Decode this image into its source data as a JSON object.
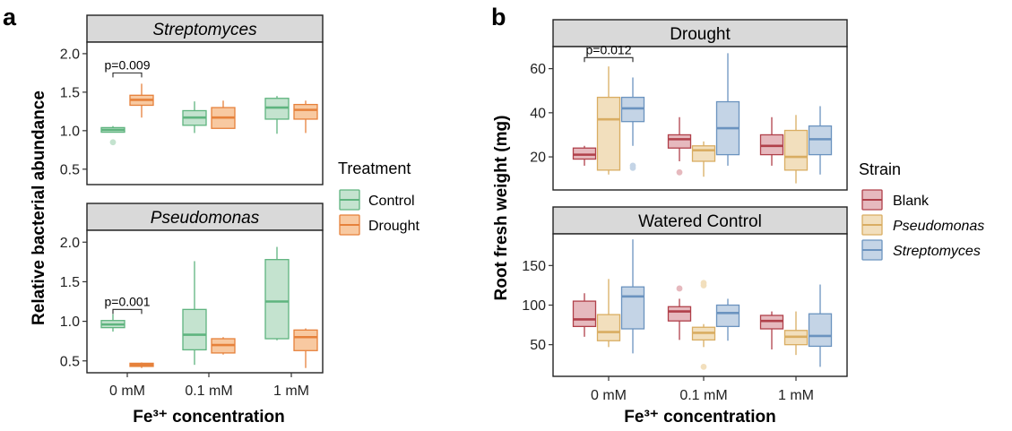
{
  "panels": {
    "a": {
      "letter": "a",
      "ylabel": "Relative bacterial abundance",
      "xlabel": "Fe³⁺ concentration"
    },
    "b": {
      "letter": "b",
      "ylabel": "Root fresh weight (mg)",
      "xlabel": "Fe³⁺ concentration"
    }
  },
  "categories": [
    "0 mM",
    "0.1 mM",
    "1 mM"
  ],
  "legends": {
    "treatment": {
      "title": "Treatment",
      "items": [
        {
          "label": "Control",
          "fill": "#c4e3cf",
          "stroke": "#5fb47f"
        },
        {
          "label": "Drought",
          "fill": "#f8c9a1",
          "stroke": "#e6813b"
        }
      ]
    },
    "strain": {
      "title": "Strain",
      "items": [
        {
          "label": "Blank",
          "italic": false,
          "fill": "#e6b9be",
          "stroke": "#b0404a"
        },
        {
          "label": "Pseudomonas",
          "italic": true,
          "fill": "#f2dfbd",
          "stroke": "#d9ad62"
        },
        {
          "label": "Streptomyces",
          "italic": true,
          "fill": "#c4d4e6",
          "stroke": "#6b93bf"
        }
      ]
    }
  },
  "chart_data": [
    {
      "type": "box",
      "panel": "a",
      "facet_title": "Streptomyces",
      "facet_italic": true,
      "ylabel": "Relative bacterial abundance",
      "xlabel": "Fe³⁺ concentration",
      "yticks": [
        0.5,
        1.0,
        1.5,
        2.0
      ],
      "ylim": [
        0.3,
        2.15
      ],
      "series": [
        {
          "name": "Control",
          "boxes": [
            {
              "category": "0 mM",
              "whislo": 0.98,
              "q1": 0.98,
              "med": 1.01,
              "q3": 1.04,
              "whishi": 1.06,
              "outliers": [
                0.85
              ]
            },
            {
              "category": "0.1 mM",
              "whislo": 0.97,
              "q1": 1.07,
              "med": 1.17,
              "q3": 1.26,
              "whishi": 1.38,
              "outliers": []
            },
            {
              "category": "1 mM",
              "whislo": 0.96,
              "q1": 1.15,
              "med": 1.3,
              "q3": 1.42,
              "whishi": 1.45,
              "outliers": []
            }
          ]
        },
        {
          "name": "Drought",
          "boxes": [
            {
              "category": "0 mM",
              "whislo": 1.17,
              "q1": 1.33,
              "med": 1.4,
              "q3": 1.46,
              "whishi": 1.61,
              "outliers": []
            },
            {
              "category": "0.1 mM",
              "whislo": 1.03,
              "q1": 1.03,
              "med": 1.17,
              "q3": 1.3,
              "whishi": 1.39,
              "outliers": []
            },
            {
              "category": "1 mM",
              "whislo": 0.97,
              "q1": 1.15,
              "med": 1.27,
              "q3": 1.34,
              "whishi": 1.39,
              "outliers": []
            }
          ]
        }
      ],
      "annotations": [
        {
          "text": "p=0.009",
          "category": "0 mM",
          "y": 1.75
        }
      ]
    },
    {
      "type": "box",
      "panel": "a",
      "facet_title": "Pseudomonas",
      "facet_italic": true,
      "ylabel": "Relative bacterial abundance",
      "xlabel": "Fe³⁺ concentration",
      "yticks": [
        0.5,
        1.0,
        1.5,
        2.0
      ],
      "ylim": [
        0.35,
        2.15
      ],
      "series": [
        {
          "name": "Control",
          "boxes": [
            {
              "category": "0 mM",
              "whislo": 0.87,
              "q1": 0.92,
              "med": 0.96,
              "q3": 1.01,
              "whishi": 1.09,
              "outliers": []
            },
            {
              "category": "0.1 mM",
              "whislo": 0.45,
              "q1": 0.64,
              "med": 0.83,
              "q3": 1.15,
              "whishi": 1.76,
              "outliers": []
            },
            {
              "category": "1 mM",
              "whislo": 0.76,
              "q1": 0.78,
              "med": 1.25,
              "q3": 1.78,
              "whishi": 1.94,
              "outliers": []
            }
          ]
        },
        {
          "name": "Drought",
          "boxes": [
            {
              "category": "0 mM",
              "whislo": 0.41,
              "q1": 0.43,
              "med": 0.45,
              "q3": 0.47,
              "whishi": 0.48,
              "outliers": []
            },
            {
              "category": "0.1 mM",
              "whislo": 0.58,
              "q1": 0.6,
              "med": 0.7,
              "q3": 0.78,
              "whishi": 0.8,
              "outliers": []
            },
            {
              "category": "1 mM",
              "whislo": 0.41,
              "q1": 0.63,
              "med": 0.8,
              "q3": 0.89,
              "whishi": 0.91,
              "outliers": []
            }
          ]
        }
      ],
      "annotations": [
        {
          "text": "p=0.001",
          "category": "0 mM",
          "y": 1.15
        }
      ]
    },
    {
      "type": "box",
      "panel": "b",
      "facet_title": "Drought",
      "facet_italic": false,
      "ylabel": "Root fresh weight (mg)",
      "xlabel": "Fe³⁺ concentration",
      "yticks": [
        20,
        40,
        60
      ],
      "ylim": [
        5,
        70
      ],
      "series": [
        {
          "name": "Blank",
          "boxes": [
            {
              "category": "0 mM",
              "whislo": 16,
              "q1": 19,
              "med": 21,
              "q3": 24,
              "whishi": 25,
              "outliers": []
            },
            {
              "category": "0.1 mM",
              "whislo": 18,
              "q1": 24,
              "med": 28,
              "q3": 30,
              "whishi": 38,
              "outliers": [
                13
              ]
            },
            {
              "category": "1 mM",
              "whislo": 16,
              "q1": 21,
              "med": 25,
              "q3": 30,
              "whishi": 38,
              "outliers": []
            }
          ]
        },
        {
          "name": "Pseudomonas",
          "boxes": [
            {
              "category": "0 mM",
              "whislo": 12,
              "q1": 14,
              "med": 37,
              "q3": 47,
              "whishi": 61,
              "outliers": []
            },
            {
              "category": "0.1 mM",
              "whislo": 11,
              "q1": 18,
              "med": 23,
              "q3": 25,
              "whishi": 27,
              "outliers": []
            },
            {
              "category": "1 mM",
              "whislo": 8,
              "q1": 14,
              "med": 20,
              "q3": 32,
              "whishi": 39,
              "outliers": []
            }
          ]
        },
        {
          "name": "Streptomyces",
          "boxes": [
            {
              "category": "0 mM",
              "whislo": 25,
              "q1": 36,
              "med": 42,
              "q3": 47,
              "whishi": 56,
              "outliers": [
                16,
                15
              ]
            },
            {
              "category": "0.1 mM",
              "whislo": 16,
              "q1": 21,
              "med": 33,
              "q3": 45,
              "whishi": 67,
              "outliers": []
            },
            {
              "category": "1 mM",
              "whislo": 12,
              "q1": 21,
              "med": 28,
              "q3": 34,
              "whishi": 43,
              "outliers": []
            }
          ]
        }
      ],
      "annotations": [
        {
          "text": "p=0.012",
          "category": "0 mM",
          "y": 65
        }
      ]
    },
    {
      "type": "box",
      "panel": "b",
      "facet_title": "Watered Control",
      "facet_italic": false,
      "ylabel": "Root fresh weight (mg)",
      "xlabel": "Fe³⁺ concentration",
      "yticks": [
        50,
        100,
        150
      ],
      "ylim": [
        10,
        190
      ],
      "series": [
        {
          "name": "Blank",
          "boxes": [
            {
              "category": "0 mM",
              "whislo": 60,
              "q1": 73,
              "med": 82,
              "q3": 105,
              "whishi": 115,
              "outliers": []
            },
            {
              "category": "0.1 mM",
              "whislo": 56,
              "q1": 80,
              "med": 92,
              "q3": 98,
              "whishi": 108,
              "outliers": [
                121
              ]
            },
            {
              "category": "1 mM",
              "whislo": 44,
              "q1": 70,
              "med": 80,
              "q3": 87,
              "whishi": 92,
              "outliers": []
            }
          ]
        },
        {
          "name": "Pseudomonas",
          "boxes": [
            {
              "category": "0 mM",
              "whislo": 47,
              "q1": 55,
              "med": 66,
              "q3": 88,
              "whishi": 133,
              "outliers": []
            },
            {
              "category": "0.1 mM",
              "whislo": 47,
              "q1": 56,
              "med": 65,
              "q3": 72,
              "whishi": 76,
              "outliers": [
                128,
                125,
                22
              ]
            },
            {
              "category": "1 mM",
              "whislo": 37,
              "q1": 50,
              "med": 60,
              "q3": 68,
              "whishi": 92,
              "outliers": []
            }
          ]
        },
        {
          "name": "Streptomyces",
          "boxes": [
            {
              "category": "0 mM",
              "whislo": 39,
              "q1": 70,
              "med": 111,
              "q3": 123,
              "whishi": 183,
              "outliers": []
            },
            {
              "category": "0.1 mM",
              "whislo": 55,
              "q1": 73,
              "med": 90,
              "q3": 100,
              "whishi": 108,
              "outliers": []
            },
            {
              "category": "1 mM",
              "whislo": 22,
              "q1": 48,
              "med": 61,
              "q3": 89,
              "whishi": 126,
              "outliers": []
            }
          ]
        }
      ],
      "annotations": []
    }
  ]
}
